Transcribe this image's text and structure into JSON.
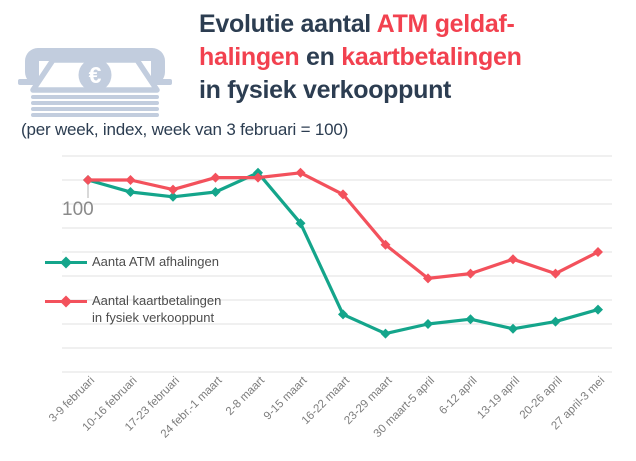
{
  "header": {
    "title": {
      "seg1": "Evolutie aantal ",
      "seg2": "ATM geldaf-",
      "seg3": "halingen",
      "seg4": " en ",
      "seg5": "kaartbetalingen",
      "seg6": "in fysiek verkooppunt"
    },
    "subtitle": "(per week, index, week van 3 februari = 100)"
  },
  "icon": {
    "semantic": "atm-cash-withdrawal-icon",
    "currency_symbol": "€"
  },
  "legend": {
    "entry1": {
      "label": "Aanta ATM afhalingen"
    },
    "entry2": {
      "label_line1": "Aantal kaartbetalingen",
      "label_line2": "in fysiek verkooppunt"
    }
  },
  "colors": {
    "navy": "#2c3d51",
    "title_red": "#f2414f",
    "teal": "#14a58b",
    "red": "#f3515c",
    "icon": "#c2cdde",
    "grid": "#e2e2e2",
    "axis_label": "#7d7d7d",
    "ref_label": "#8a8a8a",
    "legend_text": "#4d4d4d"
  },
  "chart_data": {
    "type": "line",
    "title": "Evolutie aantal ATM geldafhalingen en kaartbetalingen in fysiek verkooppunt",
    "subtitle": "(per week, index, week van 3 februari = 100)",
    "categories": [
      "3-9 februari",
      "10-16 februari",
      "17-23 februari",
      "24 febr.-1 maart",
      "2-8 maart",
      "9-15 maart",
      "16-22 maart",
      "23-29 maart",
      "30 maart-5 april",
      "6-12 april",
      "13-19 april",
      "20-26 april",
      "27 april-3 mei"
    ],
    "series": [
      {
        "id": "atm-afhalingen",
        "name": "Aanta ATM afhalingen",
        "color": "#14a58b",
        "values": [
          100,
          95,
          93,
          95,
          103,
          82,
          44,
          36,
          40,
          42,
          38,
          41,
          46
        ]
      },
      {
        "id": "kaartbetalingen",
        "name": "Aantal kaartbetalingen in fysiek verkooppunt",
        "color": "#f3515c",
        "values": [
          100,
          100,
          96,
          101,
          101,
          103,
          94,
          73,
          59,
          61,
          67,
          61,
          70
        ]
      }
    ],
    "ylim": [
      20,
      110
    ],
    "gridline_step": 10,
    "ref_value": 100,
    "ref_label": "100",
    "grid": true,
    "legend_position": "middle-left",
    "marker": "diamond"
  }
}
